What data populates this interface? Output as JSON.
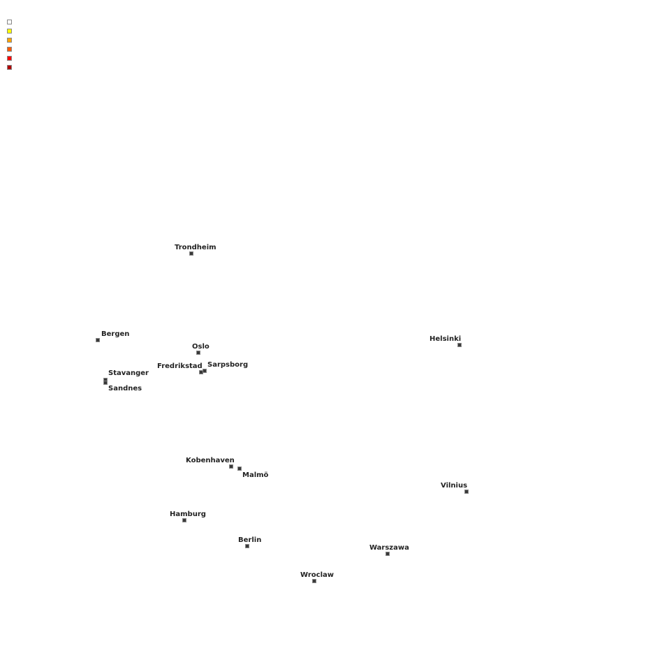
{
  "legend": {
    "colors": [
      "#ffffff",
      "#ffff00",
      "#ffa500",
      "#ff5a00",
      "#ff0000",
      "#b00000"
    ]
  },
  "cities": [
    {
      "name": "Trondheim"
    },
    {
      "name": "Bergen"
    },
    {
      "name": "Oslo"
    },
    {
      "name": "Fredrikstad"
    },
    {
      "name": "Sarpsborg"
    },
    {
      "name": "Stavanger"
    },
    {
      "name": "Sandnes"
    },
    {
      "name": "Helsinki"
    },
    {
      "name": "Kobenhaven"
    },
    {
      "name": "Malmö"
    },
    {
      "name": "Vilnius"
    },
    {
      "name": "Hamburg"
    },
    {
      "name": "Berlin"
    },
    {
      "name": "Warszawa"
    },
    {
      "name": "Wroclaw"
    }
  ]
}
